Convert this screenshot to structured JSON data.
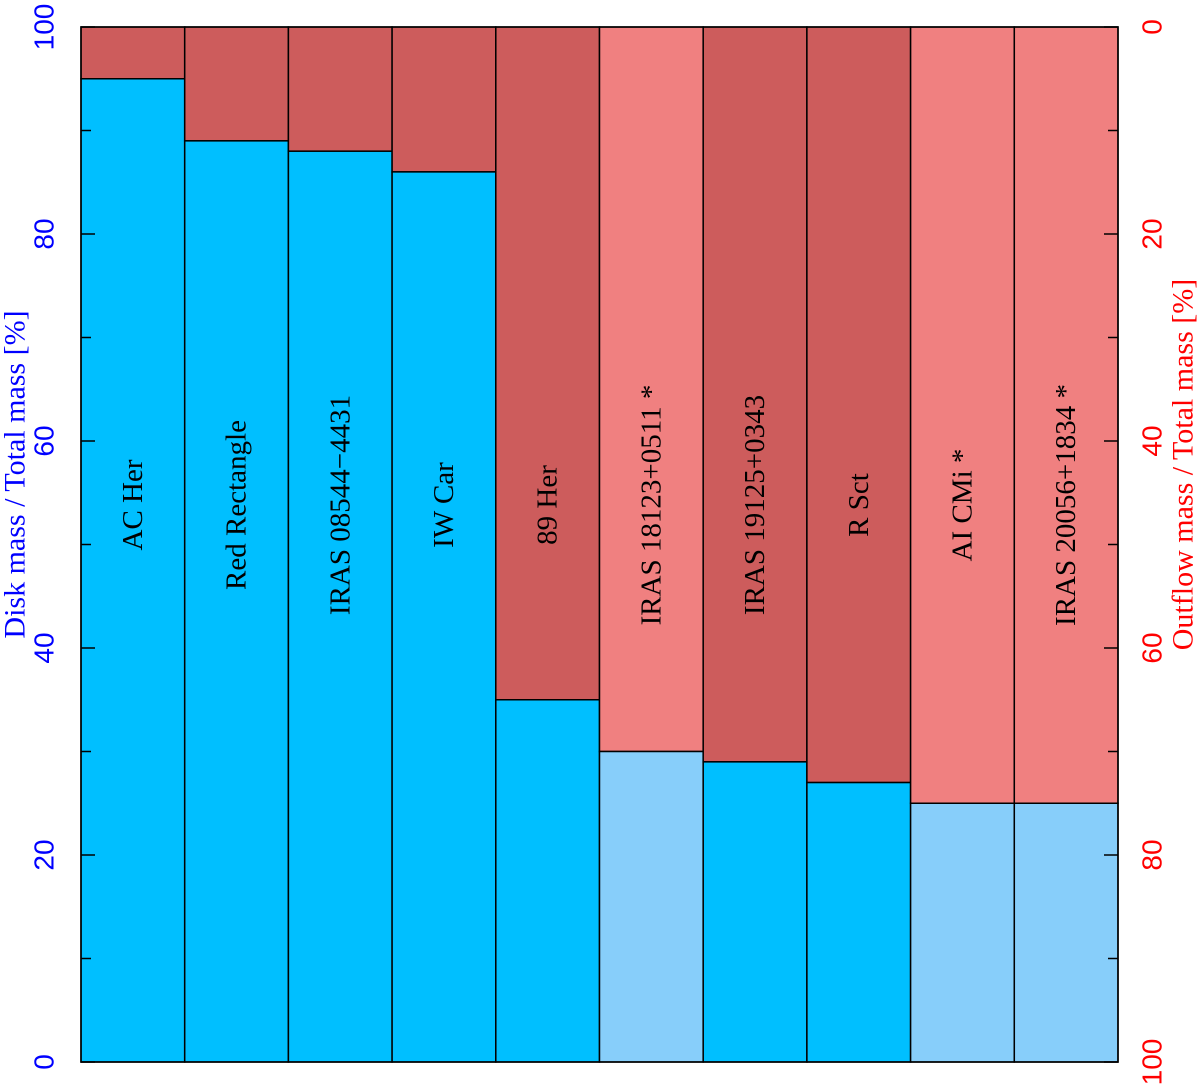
{
  "chart_data": {
    "type": "bar",
    "stacked": true,
    "orientation": "vertical",
    "categories": [
      "AC Her",
      "Red Rectangle",
      "IRAS 08544−4431",
      "IW Car",
      "89 Her",
      "IRAS 18123+0511 *",
      "IRAS 19125+0343",
      "R Sct",
      "AI CMi *",
      "IRAS 20056+1834 *"
    ],
    "series": [
      {
        "name": "Disk mass",
        "values": [
          95,
          89,
          88,
          86,
          35,
          30,
          29,
          27,
          25,
          25
        ]
      },
      {
        "name": "Outflow mass",
        "values": [
          5,
          11,
          12,
          14,
          65,
          70,
          71,
          73,
          75,
          75
        ]
      }
    ],
    "tentative": [
      false,
      false,
      false,
      false,
      false,
      true,
      false,
      false,
      true,
      true
    ],
    "colors": {
      "disk": "#00bfff",
      "disk_tentative": "#87cefa",
      "outflow": "#cd5c5c",
      "outflow_tentative": "#f08080",
      "left_axis": "#0000ff",
      "right_axis": "#ff0000",
      "frame": "#000000"
    },
    "left_axis": {
      "label": "Disk mass / Total mass [%]",
      "range": [
        0,
        100
      ],
      "ticks": [
        0,
        20,
        40,
        60,
        80,
        100
      ],
      "minor_ticks": [
        10,
        30,
        50,
        70,
        90
      ]
    },
    "right_axis": {
      "label": "Outflow mass / Total mass [%]",
      "range": [
        100,
        0
      ],
      "ticks": [
        0,
        20,
        40,
        60,
        80,
        100
      ],
      "minor_ticks": [
        10,
        30,
        50,
        70,
        90
      ]
    },
    "title": "",
    "grid": false
  }
}
